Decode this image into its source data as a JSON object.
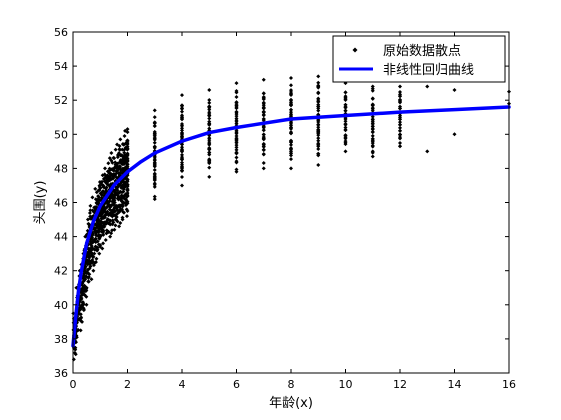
{
  "chart_data": {
    "type": "scatter",
    "xlabel": "年龄(x)",
    "ylabel": "头围(y)",
    "xlim": [
      0,
      16
    ],
    "ylim": [
      36,
      56
    ],
    "xticks": [
      0,
      2,
      4,
      6,
      8,
      10,
      12,
      14,
      16
    ],
    "yticks": [
      36,
      38,
      40,
      42,
      44,
      46,
      48,
      50,
      52,
      54,
      56
    ],
    "grid": false,
    "legend_position": "top-right",
    "colors": {
      "scatter": "#000000",
      "curve": "#0000ff",
      "axes": "#000000",
      "background": "#ffffff"
    },
    "series": [
      {
        "name": "原始数据散点",
        "kind": "scatter",
        "marker": "diamond",
        "clusters": [
          {
            "x": 0.05,
            "y_min": 36.8,
            "y_max": 39.5
          },
          {
            "x": 0.15,
            "y_min": 37.8,
            "y_max": 41.0
          },
          {
            "x": 0.25,
            "y_min": 38.5,
            "y_max": 42.0
          },
          {
            "x": 0.35,
            "y_min": 39.0,
            "y_max": 43.0
          },
          {
            "x": 0.45,
            "y_min": 40.0,
            "y_max": 44.0
          },
          {
            "x": 0.55,
            "y_min": 41.0,
            "y_max": 45.0
          },
          {
            "x": 0.65,
            "y_min": 41.5,
            "y_max": 45.8
          },
          {
            "x": 0.75,
            "y_min": 42.0,
            "y_max": 46.3
          },
          {
            "x": 0.85,
            "y_min": 42.5,
            "y_max": 46.8
          },
          {
            "x": 0.95,
            "y_min": 43.0,
            "y_max": 47.2
          },
          {
            "x": 1.05,
            "y_min": 43.3,
            "y_max": 47.6
          },
          {
            "x": 1.15,
            "y_min": 43.6,
            "y_max": 48.0
          },
          {
            "x": 1.25,
            "y_min": 43.8,
            "y_max": 48.3
          },
          {
            "x": 1.35,
            "y_min": 44.0,
            "y_max": 48.6
          },
          {
            "x": 1.45,
            "y_min": 44.2,
            "y_max": 48.9
          },
          {
            "x": 1.55,
            "y_min": 44.4,
            "y_max": 49.1
          },
          {
            "x": 1.65,
            "y_min": 44.6,
            "y_max": 49.4
          },
          {
            "x": 1.75,
            "y_min": 44.8,
            "y_max": 49.7
          },
          {
            "x": 1.85,
            "y_min": 45.0,
            "y_max": 49.9
          },
          {
            "x": 1.95,
            "y_min": 45.2,
            "y_max": 50.2
          },
          {
            "x": 2,
            "y_min": 45.5,
            "y_max": 50.3
          },
          {
            "x": 3,
            "y_min": 46.2,
            "y_max": 51.4
          },
          {
            "x": 4,
            "y_min": 47.0,
            "y_max": 52.3
          },
          {
            "x": 5,
            "y_min": 47.5,
            "y_max": 52.6
          },
          {
            "x": 6,
            "y_min": 47.8,
            "y_max": 53.0
          },
          {
            "x": 7,
            "y_min": 48.0,
            "y_max": 53.2
          },
          {
            "x": 8,
            "y_min": 48.0,
            "y_max": 53.3
          },
          {
            "x": 9,
            "y_min": 48.2,
            "y_max": 53.4
          },
          {
            "x": 10,
            "y_min": 49.0,
            "y_max": 53.0
          },
          {
            "x": 11,
            "y_min": 48.7,
            "y_max": 52.8
          },
          {
            "x": 12,
            "y_min": 49.3,
            "y_max": 52.8
          }
        ],
        "outliers": [
          {
            "x": 11,
            "y": 49.0
          },
          {
            "x": 12,
            "y": 49.3
          },
          {
            "x": 13,
            "y": 49.0
          },
          {
            "x": 13,
            "y": 52.8
          },
          {
            "x": 14,
            "y": 50.0
          },
          {
            "x": 14,
            "y": 52.6
          },
          {
            "x": 16,
            "y": 51.8
          },
          {
            "x": 16,
            "y": 52.5
          }
        ]
      },
      {
        "name": "非线性回归曲线",
        "kind": "line",
        "x": [
          0,
          0.1,
          0.2,
          0.3,
          0.5,
          0.75,
          1,
          1.5,
          2,
          2.5,
          3,
          4,
          5,
          6,
          8,
          10,
          12,
          14,
          16
        ],
        "y": [
          37.6,
          39.3,
          40.8,
          41.9,
          43.6,
          44.9,
          45.8,
          47.0,
          47.8,
          48.4,
          48.9,
          49.6,
          50.1,
          50.4,
          50.9,
          51.1,
          51.3,
          51.45,
          51.6
        ]
      }
    ]
  }
}
